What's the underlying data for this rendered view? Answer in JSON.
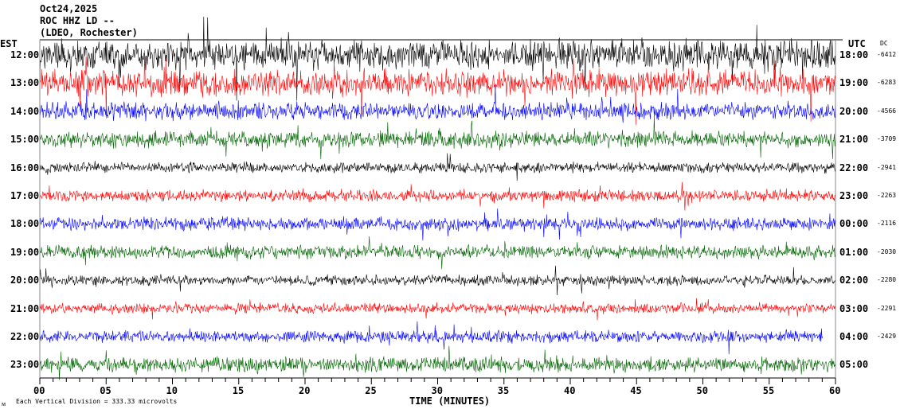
{
  "header": {
    "date": "Oct24,2025",
    "station": "ROC HHZ LD --",
    "location": "(LDEO, Rochester)"
  },
  "left_timezone": "EST",
  "right_timezone": "UTC",
  "dc_header": "DC",
  "footer": {
    "scale_note": "Each Vertical Division =  333.33 microvolts",
    "x_axis_title": "TIME (MINUTES)"
  },
  "chart_data": {
    "type": "line",
    "subtype": "helicorder",
    "xlabel": "TIME (MINUTES)",
    "xlim": [
      0,
      60
    ],
    "x_ticks": [
      "00",
      "05",
      "10",
      "15",
      "20",
      "25",
      "30",
      "35",
      "40",
      "45",
      "50",
      "55",
      "60"
    ],
    "trace_colors": [
      "#000000",
      "#ff0000",
      "#0000ff",
      "#006400"
    ],
    "rows": [
      {
        "est": "12:00",
        "utc": "18:00",
        "dc": "-6412",
        "color": "#000000",
        "amplitude": 1.0
      },
      {
        "est": "13:00",
        "utc": "19:00",
        "dc": "-6283",
        "color": "#ff0000",
        "amplitude": 0.9
      },
      {
        "est": "14:00",
        "utc": "20:00",
        "dc": "-4566",
        "color": "#0000ff",
        "amplitude": 0.6
      },
      {
        "est": "15:00",
        "utc": "21:00",
        "dc": "-3709",
        "color": "#006400",
        "amplitude": 0.55
      },
      {
        "est": "16:00",
        "utc": "22:00",
        "dc": "-2941",
        "color": "#000000",
        "amplitude": 0.35
      },
      {
        "est": "17:00",
        "utc": "23:00",
        "dc": "-2263",
        "color": "#ff0000",
        "amplitude": 0.4
      },
      {
        "est": "18:00",
        "utc": "00:00",
        "dc": "-2116",
        "color": "#0000ff",
        "amplitude": 0.45
      },
      {
        "est": "19:00",
        "utc": "01:00",
        "dc": "-2030",
        "color": "#006400",
        "amplitude": 0.45
      },
      {
        "est": "20:00",
        "utc": "02:00",
        "dc": "-2280",
        "color": "#000000",
        "amplitude": 0.35
      },
      {
        "est": "21:00",
        "utc": "03:00",
        "dc": "-2291",
        "color": "#ff0000",
        "amplitude": 0.35
      },
      {
        "est": "22:00",
        "utc": "04:00",
        "dc": "-2429",
        "color": "#0000ff",
        "amplitude": 0.4
      },
      {
        "est": "23:00",
        "utc": "05:00",
        "dc": "",
        "color": "#006400",
        "amplitude": 0.5
      }
    ]
  }
}
